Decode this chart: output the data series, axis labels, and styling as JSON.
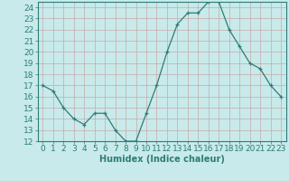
{
  "x": [
    0,
    1,
    2,
    3,
    4,
    5,
    6,
    7,
    8,
    9,
    10,
    11,
    12,
    13,
    14,
    15,
    16,
    17,
    18,
    19,
    20,
    21,
    22,
    23
  ],
  "y": [
    17,
    16.5,
    15,
    14,
    13.5,
    14.5,
    14.5,
    13,
    12,
    12,
    14.5,
    17,
    20,
    22.5,
    23.5,
    23.5,
    24.5,
    24.5,
    22,
    20.5,
    19,
    18.5,
    17,
    16
  ],
  "line_color": "#2d7d78",
  "bg_color": "#c8eaea",
  "grid_color": "#b0d4d4",
  "xlabel": "Humidex (Indice chaleur)",
  "ylim": [
    12,
    24.5
  ],
  "xlim": [
    -0.5,
    23.5
  ],
  "yticks": [
    12,
    13,
    14,
    15,
    16,
    17,
    18,
    19,
    20,
    21,
    22,
    23,
    24
  ],
  "xticks": [
    0,
    1,
    2,
    3,
    4,
    5,
    6,
    7,
    8,
    9,
    10,
    11,
    12,
    13,
    14,
    15,
    16,
    17,
    18,
    19,
    20,
    21,
    22,
    23
  ],
  "tick_color": "#2d7d78",
  "label_fontsize": 7,
  "tick_fontsize": 6.5
}
